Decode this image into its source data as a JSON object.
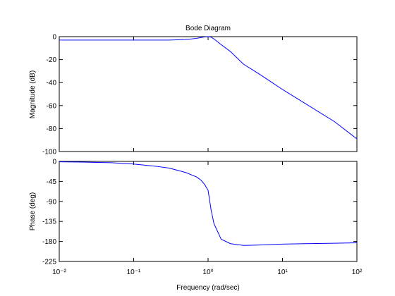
{
  "chart_data": [
    {
      "type": "line",
      "title": "Bode Diagram",
      "y_label": "Magnitude (dB)",
      "color": "#0000ff",
      "xscale": "log",
      "xlim": [
        0.01,
        100
      ],
      "ylim": [
        -100,
        0
      ],
      "yticks": [
        0,
        -20,
        -40,
        -60,
        -80,
        -100
      ],
      "x": [
        0.01,
        0.02,
        0.05,
        0.1,
        0.2,
        0.3,
        0.5,
        0.7,
        0.8,
        0.9,
        1,
        1.1,
        1.2,
        1.5,
        2,
        3,
        5,
        10,
        20,
        50,
        100
      ],
      "values": [
        -3,
        -3,
        -3,
        -3,
        -3,
        -3,
        -2.5,
        -1.5,
        -0.8,
        -0.2,
        0,
        -0.5,
        -2,
        -7,
        -13,
        -24,
        -33,
        -46,
        -58,
        -74,
        -89
      ]
    },
    {
      "type": "line",
      "x_label": "Frequency  (rad/sec)",
      "y_label": "Phase (deg)",
      "color": "#0000ff",
      "xscale": "log",
      "xlim": [
        0.01,
        100
      ],
      "ylim": [
        -225,
        0
      ],
      "yticks": [
        0,
        -45,
        -90,
        -135,
        -180,
        -225
      ],
      "xticks": [
        {
          "value": 0.01,
          "label": "10⁻²"
        },
        {
          "value": 0.1,
          "label": "10⁻¹"
        },
        {
          "value": 1,
          "label": "10⁰"
        },
        {
          "value": 10,
          "label": "10¹"
        },
        {
          "value": 100,
          "label": "10²"
        }
      ],
      "x": [
        0.01,
        0.02,
        0.05,
        0.1,
        0.2,
        0.3,
        0.5,
        0.7,
        0.8,
        0.9,
        1,
        1.1,
        1.2,
        1.5,
        2,
        3,
        5,
        10,
        20,
        50,
        100
      ],
      "values": [
        -1,
        -1.5,
        -3,
        -6,
        -11,
        -15,
        -25,
        -35,
        -42,
        -52,
        -65,
        -110,
        -140,
        -175,
        -185,
        -189,
        -188,
        -186,
        -185,
        -184,
        -183
      ]
    }
  ]
}
